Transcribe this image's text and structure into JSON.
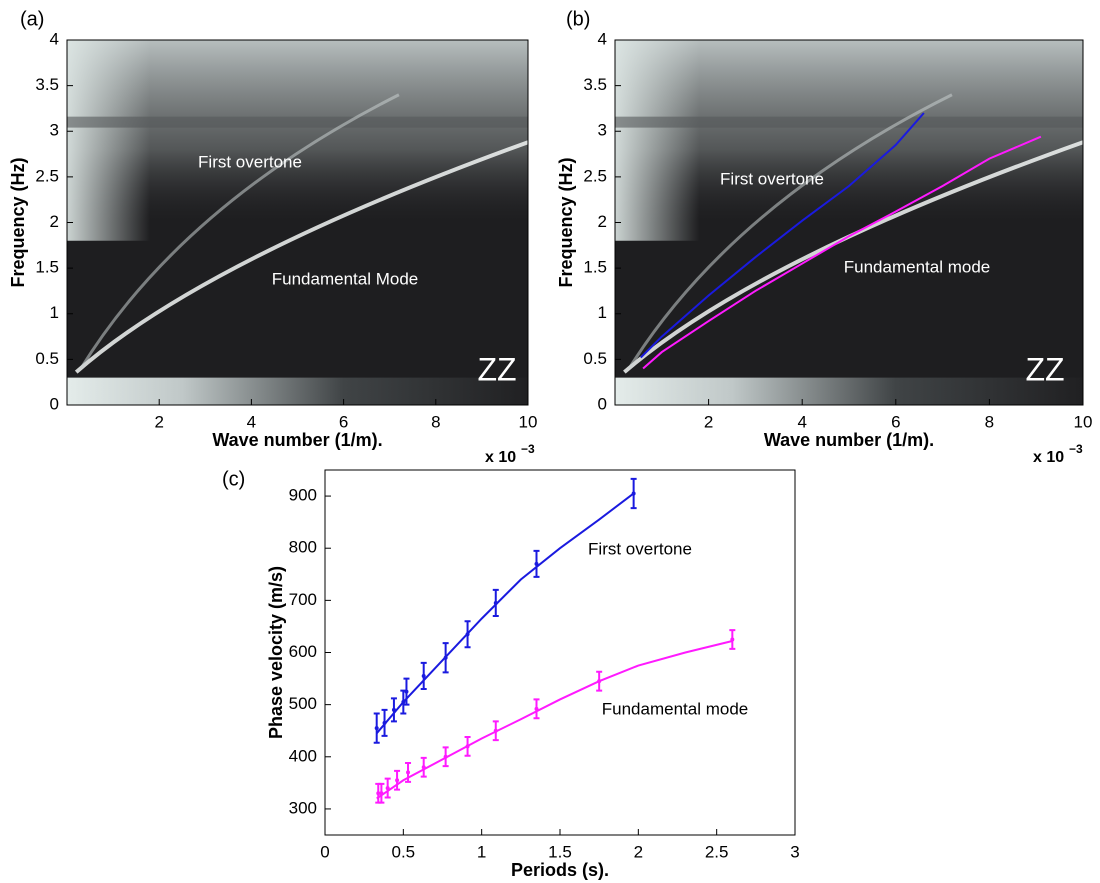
{
  "chart_data": [
    {
      "type": "heatmap",
      "panel_label": "(a)",
      "xlabel": "Wave number (1/m).",
      "ylabel": "Frequency (Hz)",
      "x_multiplier": {
        "base": "x 10",
        "exponent": "−3"
      },
      "xlim": [
        0,
        10
      ],
      "ylim": [
        0,
        4
      ],
      "xticks": [
        2,
        4,
        6,
        8,
        10
      ],
      "yticks": [
        0,
        0.5,
        1,
        1.5,
        2,
        2.5,
        3,
        3.5,
        4
      ],
      "annotations": [
        "First overtone",
        "Fundamental Mode",
        "ZZ"
      ]
    },
    {
      "type": "line",
      "panel_label": "(b)",
      "xlabel": "Wave number (1/m).",
      "ylabel": "Frequency (Hz)",
      "x_multiplier": {
        "base": "x 10",
        "exponent": "−3"
      },
      "xlim": [
        0,
        10
      ],
      "ylim": [
        0,
        4
      ],
      "xticks": [
        2,
        4,
        6,
        8,
        10
      ],
      "yticks": [
        0,
        0.5,
        1,
        1.5,
        2,
        2.5,
        3,
        3.5,
        4
      ],
      "annotations": [
        "First overtone",
        "Fundamental mode",
        "ZZ"
      ],
      "series": [
        {
          "color": "#1a1adf",
          "x": [
            0.55,
            1,
            2,
            3,
            4,
            5,
            6,
            6.6
          ],
          "values": [
            0.52,
            0.75,
            1.2,
            1.62,
            2.02,
            2.4,
            2.85,
            3.2
          ]
        },
        {
          "color": "#ff1aff",
          "x": [
            0.6,
            1,
            2,
            3,
            4,
            5,
            6,
            7,
            8,
            9.1
          ],
          "values": [
            0.4,
            0.58,
            0.92,
            1.25,
            1.55,
            1.85,
            2.12,
            2.4,
            2.7,
            2.94
          ]
        }
      ]
    },
    {
      "type": "scatter",
      "panel_label": "(c)",
      "xlabel": "Periods (s).",
      "ylabel": "Phase velocity (m/s)",
      "xlim": [
        0,
        3
      ],
      "ylim": [
        250,
        950
      ],
      "xticks": [
        0,
        0.5,
        1,
        1.5,
        2,
        2.5,
        3
      ],
      "yticks": [
        300,
        400,
        500,
        600,
        700,
        800,
        900
      ],
      "annotations": [
        "First overtone",
        "Fundamental mode"
      ],
      "series": [
        {
          "color": "#1a1adf",
          "x": [
            0.33,
            0.38,
            0.44,
            0.5,
            0.52,
            0.63,
            0.77,
            0.91,
            1.09,
            1.35,
            1.97
          ],
          "values": [
            455,
            465,
            490,
            505,
            525,
            555,
            590,
            635,
            695,
            770,
            905
          ],
          "errors": [
            28,
            25,
            22,
            22,
            25,
            25,
            28,
            25,
            25,
            25,
            28
          ]
        },
        {
          "color": "#ff1aff",
          "x": [
            0.34,
            0.36,
            0.4,
            0.46,
            0.53,
            0.63,
            0.77,
            0.91,
            1.09,
            1.35,
            1.75,
            2.6
          ],
          "values": [
            330,
            330,
            340,
            355,
            370,
            380,
            400,
            420,
            450,
            492,
            545,
            625
          ],
          "errors": [
            18,
            18,
            18,
            18,
            18,
            18,
            18,
            18,
            18,
            18,
            18,
            18
          ]
        }
      ],
      "fit_lines": [
        {
          "color": "#1a1adf",
          "x": [
            0.33,
            0.5,
            0.75,
            1,
            1.25,
            1.5,
            1.75,
            1.97
          ],
          "values": [
            445,
            505,
            585,
            665,
            740,
            800,
            855,
            905
          ]
        },
        {
          "color": "#ff1aff",
          "x": [
            0.33,
            0.5,
            0.75,
            1,
            1.25,
            1.5,
            1.75,
            2,
            2.3,
            2.6
          ],
          "values": [
            320,
            355,
            395,
            435,
            472,
            510,
            545,
            575,
            600,
            622
          ]
        }
      ]
    }
  ]
}
